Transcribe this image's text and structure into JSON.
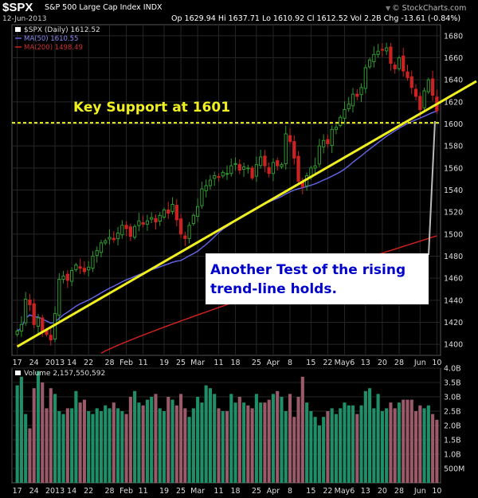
{
  "header": {
    "symbol": "$SPX",
    "name": "S&P 500 Large Cap Index",
    "exchange": "INDX",
    "date": "12-Jun-2013",
    "quote": "Op 1629.94  Hi 1637.71  Lo 1610.92  Cl 1612.52  Vol 2.2B  Chg -13.61 (-0.84%)",
    "brand": "© StockCharts.com",
    "brand_arrow": "▼"
  },
  "legend": {
    "series": "$SPX (Daily) 1612.52",
    "ma50": "MA(50) 1610.55",
    "ma200": "MA(200) 1498.49",
    "volume": "Volume 2,157,550,592"
  },
  "annotations": {
    "support": "Key Support at 1601",
    "callout_line1": "Another Test of the rising",
    "callout_line2": "trend-line holds."
  },
  "colors": {
    "up": "#2e9a2e",
    "down": "#cc2222",
    "ma50": "#6060dd",
    "ma200": "#cc2020",
    "trend": "#f0f020",
    "vol_up": "#1f8f6a",
    "vol_down": "#9a5a6a",
    "grid": "#262626",
    "callout_text": "#0000cc"
  },
  "chart_data": [
    {
      "type": "candlestick",
      "title": "$SPX (Daily)",
      "ylim": [
        1390,
        1690
      ],
      "y_ticks": [
        1400,
        1420,
        1440,
        1460,
        1480,
        1500,
        1520,
        1540,
        1560,
        1580,
        1600,
        1620,
        1640,
        1660,
        1680
      ],
      "x_ticks": [
        "17",
        "24",
        "2013",
        "14",
        "22",
        "28",
        "Feb",
        "11",
        "19",
        "25",
        "Mar",
        "11",
        "18",
        "25",
        "Apr",
        "8",
        "15",
        "22",
        "May6",
        "13",
        "20",
        "28",
        "Jun",
        "10"
      ],
      "close": [
        1412,
        1418,
        1441,
        1436,
        1418,
        1424,
        1411,
        1409,
        1404,
        1428,
        1459,
        1462,
        1458,
        1467,
        1472,
        1469,
        1466,
        1470,
        1480,
        1485,
        1492,
        1494,
        1497,
        1495,
        1501,
        1508,
        1505,
        1498,
        1507,
        1512,
        1509,
        1512,
        1515,
        1511,
        1517,
        1522,
        1519,
        1527,
        1513,
        1500,
        1496,
        1508,
        1517,
        1525,
        1541,
        1544,
        1549,
        1553,
        1552,
        1556,
        1555,
        1562,
        1564,
        1558,
        1561,
        1560,
        1551,
        1563,
        1570,
        1562,
        1555,
        1565,
        1562,
        1563,
        1591,
        1584,
        1569,
        1548,
        1543,
        1553,
        1560,
        1562,
        1580,
        1585,
        1582,
        1595,
        1597,
        1606,
        1613,
        1618,
        1627,
        1625,
        1633,
        1651,
        1658,
        1663,
        1666,
        1667,
        1669,
        1655,
        1650,
        1660,
        1648,
        1642,
        1633,
        1625,
        1613,
        1630,
        1640,
        1626,
        1612
      ],
      "support_level": 1601,
      "trendline": [
        [
          0,
          1398
        ],
        [
          100,
          1618
        ]
      ],
      "ma50_last": 1610.55,
      "ma200_last": 1498.49
    },
    {
      "type": "bar",
      "title": "Volume",
      "ylim": [
        0,
        4000000000
      ],
      "y_ticks": [
        "500M",
        "1.0B",
        "1.5B",
        "2.0B",
        "2.5B",
        "3.0B",
        "3.5B",
        "4.0B"
      ],
      "x_ticks": [
        "17",
        "24",
        "2013",
        "14",
        "22",
        "28",
        "Feb",
        "11",
        "19",
        "25",
        "Mar",
        "11",
        "18",
        "25",
        "Apr",
        "8",
        "15",
        "22",
        "May6",
        "13",
        "20",
        "28",
        "Jun",
        "10"
      ],
      "values_billions": [
        3.4,
        3.7,
        2.4,
        1.9,
        3.3,
        3.9,
        3.5,
        2.6,
        3.3,
        3.1,
        2.5,
        2.4,
        2.6,
        2.6,
        3.2,
        2.8,
        2.9,
        2.5,
        2.4,
        2.6,
        2.5,
        2.7,
        2.6,
        2.8,
        2.6,
        2.5,
        2.4,
        3.0,
        3.2,
        2.8,
        2.7,
        2.9,
        3.0,
        3.1,
        2.6,
        2.5,
        3.0,
        2.9,
        2.7,
        3.1,
        2.6,
        2.3,
        2.6,
        3.0,
        2.8,
        3.4,
        3.3,
        3.1,
        2.6,
        2.5,
        2.5,
        3.1,
        2.8,
        3.0,
        2.8,
        2.7,
        2.6,
        3.1,
        2.8,
        2.8,
        2.9,
        3.1,
        3.2,
        3.0,
        2.5,
        3.1,
        2.3,
        3.0,
        3.7,
        2.8,
        2.5,
        2.3,
        2.0,
        2.3,
        2.5,
        2.6,
        2.4,
        2.6,
        2.8,
        2.7,
        2.7,
        2.4,
        2.7,
        3.2,
        3.3,
        2.6,
        3.1,
        2.5,
        2.6,
        2.8,
        2.6,
        2.8,
        2.9,
        2.9,
        2.9,
        2.5,
        2.7,
        2.6,
        2.7,
        2.4,
        2.2
      ],
      "up": [
        1,
        1,
        1,
        0,
        0,
        1,
        0,
        0,
        0,
        1,
        1,
        1,
        0,
        1,
        1,
        0,
        0,
        1,
        1,
        1,
        1,
        1,
        1,
        0,
        1,
        1,
        0,
        0,
        1,
        1,
        0,
        1,
        1,
        0,
        1,
        1,
        0,
        1,
        0,
        0,
        0,
        1,
        1,
        1,
        1,
        1,
        1,
        1,
        0,
        1,
        0,
        1,
        1,
        0,
        1,
        0,
        0,
        1,
        1,
        0,
        0,
        1,
        0,
        1,
        1,
        0,
        0,
        0,
        0,
        1,
        1,
        1,
        1,
        1,
        0,
        1,
        1,
        1,
        1,
        1,
        1,
        0,
        1,
        1,
        1,
        1,
        1,
        1,
        1,
        0,
        0,
        1,
        0,
        0,
        0,
        0,
        0,
        1,
        1,
        0,
        0
      ]
    }
  ]
}
